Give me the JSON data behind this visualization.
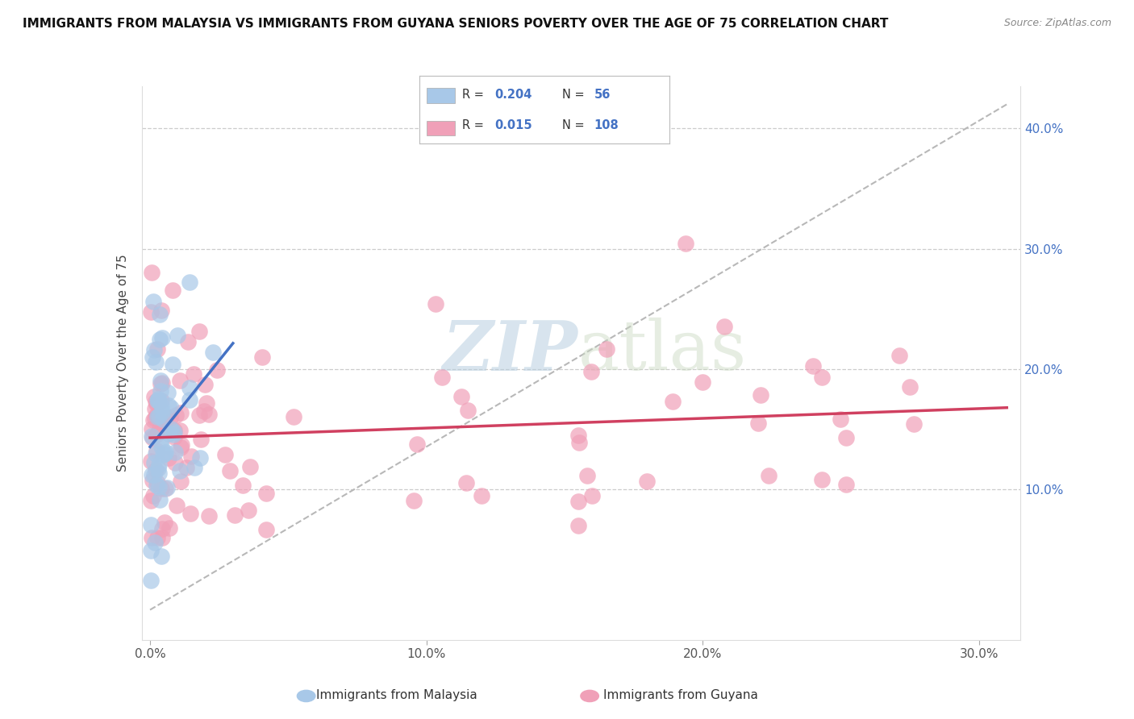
{
  "title": "IMMIGRANTS FROM MALAYSIA VS IMMIGRANTS FROM GUYANA SENIORS POVERTY OVER THE AGE OF 75 CORRELATION CHART",
  "source": "Source: ZipAtlas.com",
  "ylabel": "Seniors Poverty Over the Age of 75",
  "xlim": [
    -0.003,
    0.315
  ],
  "ylim": [
    -0.025,
    0.435
  ],
  "x_ticks": [
    0.0,
    0.1,
    0.2,
    0.3
  ],
  "x_tick_labels": [
    "0.0%",
    "10.0%",
    "20.0%",
    "30.0%"
  ],
  "y_ticks": [
    0.1,
    0.2,
    0.3,
    0.4
  ],
  "y_tick_labels": [
    "10.0%",
    "20.0%",
    "30.0%",
    "40.0%"
  ],
  "legend_label_1": "Immigrants from Malaysia",
  "legend_label_2": "Immigrants from Guyana",
  "R1": 0.204,
  "N1": 56,
  "R2": 0.015,
  "N2": 108,
  "color_malaysia": "#a8c8e8",
  "color_guyana": "#f0a0b8",
  "line_color_malaysia": "#4472c4",
  "line_color_guyana": "#d04060",
  "refline_color": "#b8b8b8"
}
